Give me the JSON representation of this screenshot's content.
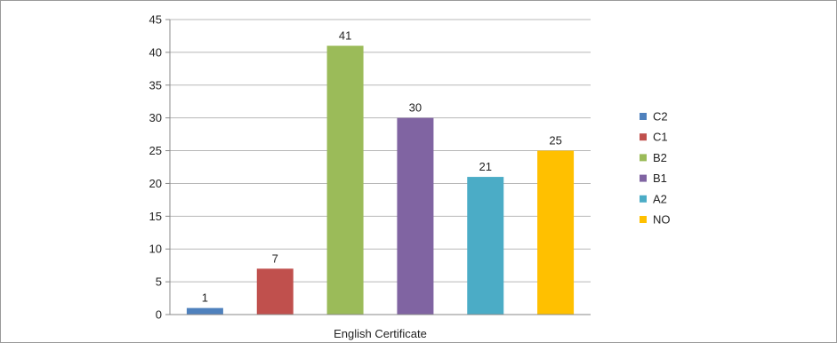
{
  "chart_data": {
    "type": "bar",
    "categories": [
      "C2",
      "C1",
      "B2",
      "B1",
      "A2",
      "NO"
    ],
    "values": [
      1,
      7,
      41,
      30,
      21,
      25
    ],
    "colors": [
      "#4f81bd",
      "#c0504d",
      "#9bbb59",
      "#8064a2",
      "#4bacc6",
      "#ffc000"
    ],
    "xlabel": "English Certificate",
    "ylabel": "",
    "ylim": [
      0,
      45
    ],
    "yticks": [
      0,
      5,
      10,
      15,
      20,
      25,
      30,
      35,
      40,
      45
    ],
    "grid": true,
    "legend": "right",
    "data_labels": true
  }
}
